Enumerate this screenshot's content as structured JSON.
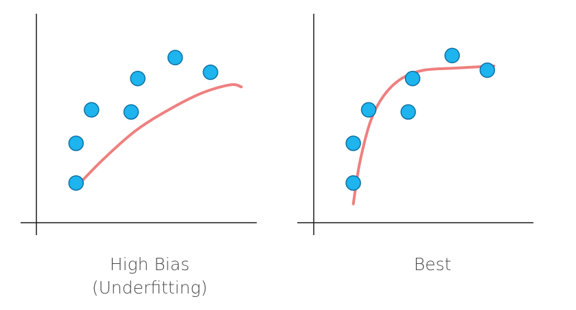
{
  "chart_data": [
    {
      "type": "scatter",
      "caption_line1": "High Bias",
      "caption_line2": "(Underfitting)",
      "xlim": [
        0,
        10
      ],
      "ylim": [
        0,
        10
      ],
      "points": [
        {
          "x": 1.8,
          "y": 1.9
        },
        {
          "x": 1.8,
          "y": 3.8
        },
        {
          "x": 2.5,
          "y": 5.4
        },
        {
          "x": 4.3,
          "y": 5.3
        },
        {
          "x": 4.6,
          "y": 6.9
        },
        {
          "x": 6.3,
          "y": 7.9
        },
        {
          "x": 7.9,
          "y": 7.2
        }
      ],
      "curve": [
        {
          "x": 1.8,
          "y": 1.7
        },
        {
          "x": 3.0,
          "y": 3.0
        },
        {
          "x": 4.5,
          "y": 4.4
        },
        {
          "x": 6.0,
          "y": 5.4
        },
        {
          "x": 7.5,
          "y": 6.2
        },
        {
          "x": 8.8,
          "y": 6.6
        },
        {
          "x": 9.3,
          "y": 6.5
        }
      ]
    },
    {
      "type": "scatter",
      "caption_line1": "Best",
      "caption_line2": "",
      "xlim": [
        0,
        10
      ],
      "ylim": [
        0,
        10
      ],
      "points": [
        {
          "x": 1.8,
          "y": 1.9
        },
        {
          "x": 1.8,
          "y": 3.8
        },
        {
          "x": 2.5,
          "y": 5.4
        },
        {
          "x": 4.3,
          "y": 5.3
        },
        {
          "x": 4.5,
          "y": 6.9
        },
        {
          "x": 6.3,
          "y": 8.0
        },
        {
          "x": 7.9,
          "y": 7.3
        }
      ],
      "curve": [
        {
          "x": 1.8,
          "y": 0.9
        },
        {
          "x": 2.1,
          "y": 2.9
        },
        {
          "x": 2.6,
          "y": 4.9
        },
        {
          "x": 3.2,
          "y": 6.1
        },
        {
          "x": 4.0,
          "y": 6.9
        },
        {
          "x": 5.0,
          "y": 7.3
        },
        {
          "x": 6.5,
          "y": 7.4
        },
        {
          "x": 8.2,
          "y": 7.5
        }
      ]
    }
  ],
  "colors": {
    "point_fill": "#1eb4ee",
    "point_stroke": "#0d6fa3",
    "curve": "#ef7f7f",
    "axis": "#1a1a1a",
    "caption": "#4a4a4a"
  }
}
